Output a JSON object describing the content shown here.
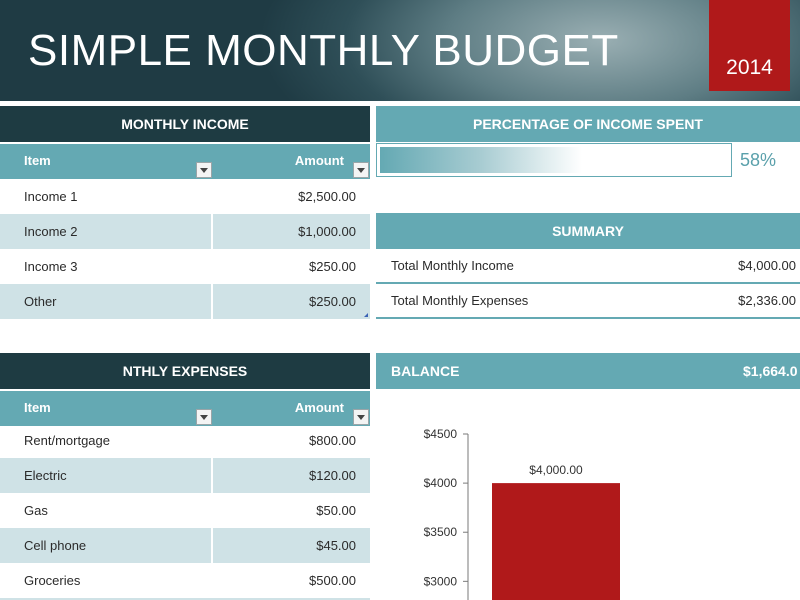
{
  "header": {
    "title": "SIMPLE MONTHLY BUDGET",
    "year": "2014"
  },
  "income": {
    "title": "MONTHLY INCOME",
    "columns": {
      "item": "Item",
      "amount": "Amount"
    },
    "rows": [
      {
        "item": "Income 1",
        "amount": "$2,500.00"
      },
      {
        "item": "Income 2",
        "amount": "$1,000.00"
      },
      {
        "item": "Income 3",
        "amount": "$250.00"
      },
      {
        "item": "Other",
        "amount": "$250.00"
      }
    ]
  },
  "expenses": {
    "title": "NTHLY EXPENSES",
    "columns": {
      "item": "Item",
      "amount": "Amount"
    },
    "rows": [
      {
        "item": "Rent/mortgage",
        "amount": "$800.00"
      },
      {
        "item": "Electric",
        "amount": "$120.00"
      },
      {
        "item": "Gas",
        "amount": "$50.00"
      },
      {
        "item": "Cell phone",
        "amount": "$45.00"
      },
      {
        "item": "Groceries",
        "amount": "$500.00"
      }
    ]
  },
  "percentage": {
    "title": "PERCENTAGE OF INCOME SPENT",
    "value_text": "58%",
    "fraction": 0.58
  },
  "summary": {
    "title": "SUMMARY",
    "total_income_label": "Total Monthly Income",
    "total_income_value": "$4,000.00",
    "total_expenses_label": "Total Monthly Expenses",
    "total_expenses_value": "$2,336.00"
  },
  "balance": {
    "label": "BALANCE",
    "value": "$1,664.0"
  },
  "colors": {
    "accent_teal": "#64a9b3",
    "dark_teal": "#1e3b42",
    "brand_red": "#b0191a",
    "row_alt": "#cfe2e6"
  },
  "chart_data": {
    "type": "bar",
    "categories": [
      ""
    ],
    "values": [
      4000
    ],
    "data_labels": [
      "$4,000.00"
    ],
    "ytick_labels": [
      "$4500",
      "$4000",
      "$3500",
      "$3000"
    ],
    "ytick_values": [
      4500,
      4000,
      3500,
      3000
    ],
    "ylim_visible": [
      2810,
      4500
    ],
    "bar_color": "#b0191a",
    "title": "",
    "xlabel": "",
    "ylabel": ""
  }
}
